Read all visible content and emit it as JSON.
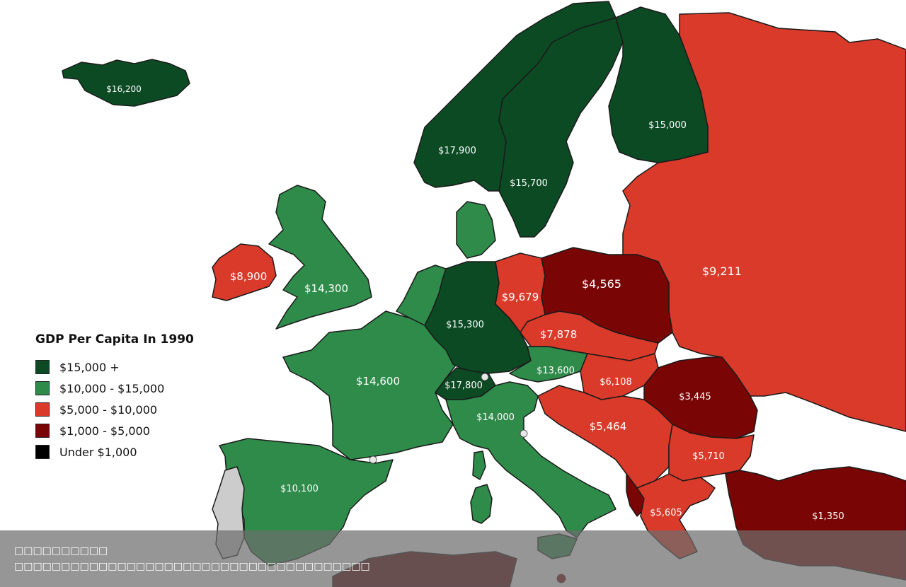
{
  "legend": {
    "title": "GDP Per Capita In 1990",
    "items": [
      {
        "label": "$15,000 +",
        "color": "#0c4a24"
      },
      {
        "label": "$10,000 - $15,000",
        "color": "#2e8b4a"
      },
      {
        "label": "$5,000 - $10,000",
        "color": "#d93a2a"
      },
      {
        "label": "$1,000 - $5,000",
        "color": "#7a0505"
      },
      {
        "label": "Under $1,000",
        "color": "#000000"
      }
    ]
  },
  "regions": [
    {
      "id": "iceland",
      "value": "$16,200",
      "tier": 0
    },
    {
      "id": "norway",
      "value": "$17,900",
      "tier": 0
    },
    {
      "id": "sweden",
      "value": "$15,700",
      "tier": 0
    },
    {
      "id": "finland",
      "value": "$15,000",
      "tier": 0
    },
    {
      "id": "ireland",
      "value": "$8,900",
      "tier": 2
    },
    {
      "id": "united-kingdom",
      "value": "$14,300",
      "tier": 1
    },
    {
      "id": "germany",
      "value": "$15,300",
      "tier": 0
    },
    {
      "id": "east-germany",
      "value": "$9,679",
      "tier": 2
    },
    {
      "id": "poland",
      "value": "$4,565",
      "tier": 3
    },
    {
      "id": "soviet-union",
      "value": "$9,211",
      "tier": 2
    },
    {
      "id": "czechoslovakia",
      "value": "$7,878",
      "tier": 2
    },
    {
      "id": "france",
      "value": "$14,600",
      "tier": 1
    },
    {
      "id": "switzerland",
      "value": "$17,800",
      "tier": 0
    },
    {
      "id": "austria",
      "value": "$13,600",
      "tier": 1
    },
    {
      "id": "hungary",
      "value": "$6,108",
      "tier": 2
    },
    {
      "id": "romania",
      "value": "$3,445",
      "tier": 3
    },
    {
      "id": "italy",
      "value": "$14,000",
      "tier": 1
    },
    {
      "id": "yugoslavia",
      "value": "$5,464",
      "tier": 2
    },
    {
      "id": "bulgaria",
      "value": "$5,710",
      "tier": 2
    },
    {
      "id": "spain",
      "value": "$10,100",
      "tier": 1
    },
    {
      "id": "greece",
      "value": "$5,605",
      "tier": 2
    },
    {
      "id": "turkey",
      "value": "$1,350",
      "tier": 3
    }
  ],
  "caption": {
    "line1": "□□□□□□□□□□",
    "line2": "□□□□□□□□□□□□□□□□□□□□□□□□□□□□□□□□□□□□□□"
  }
}
